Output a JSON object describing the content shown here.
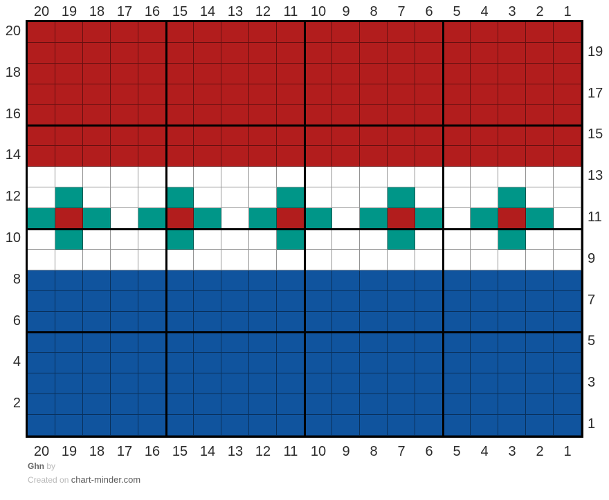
{
  "footer": {
    "title": "Ghn",
    "by_label": "by",
    "created_prefix": "Created on",
    "site": "chart-minder.com"
  },
  "chart_data": {
    "type": "heatmap",
    "title": "Ghn",
    "description": "20x20 colorwork knitting chart: red band rows 14-20, white band rows 9-13 with teal/red flower motifs centered on row 11 at columns 19, 15, 11, 7, 3, blue band rows 1-8",
    "columns": 20,
    "rows_count": 20,
    "column_labels": [
      "20",
      "19",
      "18",
      "17",
      "16",
      "15",
      "14",
      "13",
      "12",
      "11",
      "10",
      "9",
      "8",
      "7",
      "6",
      "5",
      "4",
      "3",
      "2",
      "1"
    ],
    "row_labels_left": [
      "20",
      "18",
      "16",
      "14",
      "12",
      "10",
      "8",
      "6",
      "4",
      "2"
    ],
    "row_labels_right": [
      "19",
      "17",
      "15",
      "13",
      "11",
      "9",
      "7",
      "5",
      "3",
      "1"
    ],
    "palette": {
      "R": "#b21d1d",
      "W": "#ffffff",
      "T": "#009688",
      "B": "#10549e"
    },
    "color_names": {
      "R": "red",
      "W": "white",
      "T": "teal",
      "B": "blue"
    },
    "grid_line_color": "rgba(0,0,0,0.42)",
    "major_line_color": "#000000",
    "major_grid_every": 5,
    "rows": [
      {
        "row": 20,
        "cells": "RRRRRRRRRRRRRRRRRRRR"
      },
      {
        "row": 19,
        "cells": "RRRRRRRRRRRRRRRRRRRR"
      },
      {
        "row": 18,
        "cells": "RRRRRRRRRRRRRRRRRRRR"
      },
      {
        "row": 17,
        "cells": "RRRRRRRRRRRRRRRRRRRR"
      },
      {
        "row": 16,
        "cells": "RRRRRRRRRRRRRRRRRRRR"
      },
      {
        "row": 15,
        "cells": "RRRRRRRRRRRRRRRRRRRR"
      },
      {
        "row": 14,
        "cells": "RRRRRRRRRRRRRRRRRRRR"
      },
      {
        "row": 13,
        "cells": "WWWWWWWWWWWWWWWWWWWW"
      },
      {
        "row": 12,
        "cells": "WTWWWTWWWTWWWTWWWTWW"
      },
      {
        "row": 11,
        "cells": "TRTWTRTWTRTWTRTWTRTW"
      },
      {
        "row": 10,
        "cells": "WTWWWTWWWTWWWTWWWTWW"
      },
      {
        "row": 9,
        "cells": "WWWWWWWWWWWWWWWWWWWW"
      },
      {
        "row": 8,
        "cells": "BBBBBBBBBBBBBBBBBBBB"
      },
      {
        "row": 7,
        "cells": "BBBBBBBBBBBBBBBBBBBB"
      },
      {
        "row": 6,
        "cells": "BBBBBBBBBBBBBBBBBBBB"
      },
      {
        "row": 5,
        "cells": "BBBBBBBBBBBBBBBBBBBB"
      },
      {
        "row": 4,
        "cells": "BBBBBBBBBBBBBBBBBBBB"
      },
      {
        "row": 3,
        "cells": "BBBBBBBBBBBBBBBBBBBB"
      },
      {
        "row": 2,
        "cells": "BBBBBBBBBBBBBBBBBBBB"
      },
      {
        "row": 1,
        "cells": "BBBBBBBBBBBBBBBBBBBB"
      }
    ]
  }
}
